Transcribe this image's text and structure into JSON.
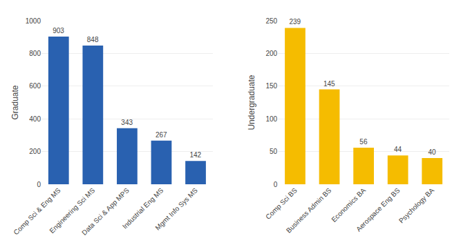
{
  "chart_data": [
    {
      "type": "bar",
      "categories": [
        "Comp Sci & Eng MS",
        "Engineering Sci MS",
        "Data Sci & App MPS",
        "Industrial Eng MS",
        "Mgmt Info Sys MS"
      ],
      "values": [
        903,
        848,
        343,
        267,
        142
      ],
      "color": "#2961b0",
      "ylabel": "Graduate",
      "ylim": [
        0,
        1000
      ],
      "yticks": [
        0,
        200,
        400,
        600,
        800,
        1000
      ],
      "grid": true,
      "data_labels": true
    },
    {
      "type": "bar",
      "categories": [
        "Comp Sci BS",
        "Business Admin BS",
        "Economics BA",
        "Aerospace Eng BS",
        "Psychology BA"
      ],
      "values": [
        239,
        145,
        56,
        44,
        40
      ],
      "color": "#f5bc00",
      "ylabel": "Undergraduate",
      "ylim": [
        0,
        250
      ],
      "yticks": [
        0,
        50,
        100,
        150,
        200,
        250
      ],
      "grid": true,
      "data_labels": true
    }
  ]
}
